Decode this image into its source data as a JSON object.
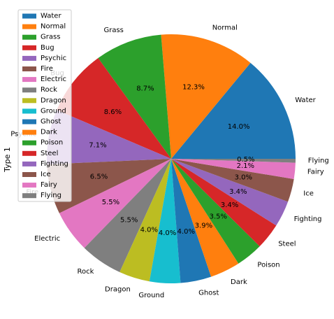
{
  "chart_data": {
    "type": "pie",
    "title": "",
    "ylabel": "Type 1",
    "legend_position": "upper-left",
    "start_angle_deg": 0,
    "direction": "counterclockwise",
    "categories": [
      "Water",
      "Normal",
      "Grass",
      "Bug",
      "Psychic",
      "Fire",
      "Electric",
      "Rock",
      "Dragon",
      "Ground",
      "Ghost",
      "Dark",
      "Poison",
      "Steel",
      "Fighting",
      "Ice",
      "Fairy",
      "Flying"
    ],
    "values": [
      14.0,
      12.3,
      8.7,
      8.6,
      7.1,
      6.5,
      5.5,
      5.5,
      4.0,
      4.0,
      4.0,
      3.9,
      3.5,
      3.4,
      3.4,
      3.0,
      2.1,
      0.5
    ],
    "labels": [
      "14.0%",
      "12.3%",
      "8.7%",
      "8.6%",
      "7.1%",
      "6.5%",
      "5.5%",
      "5.5%",
      "4.0%",
      "4.0%",
      "4.0%",
      "3.9%",
      "3.5%",
      "3.4%",
      "3.4%",
      "3.0%",
      "2.1%",
      "0.5%"
    ],
    "colors": [
      "#1f77b4",
      "#ff7f0e",
      "#2ca02c",
      "#d62728",
      "#9467bd",
      "#8c564b",
      "#e377c2",
      "#7f7f7f",
      "#bcbd22",
      "#17becf",
      "#1f77b4",
      "#ff7f0e",
      "#2ca02c",
      "#d62728",
      "#9467bd",
      "#8c564b",
      "#e377c2",
      "#7f7f7f"
    ]
  }
}
